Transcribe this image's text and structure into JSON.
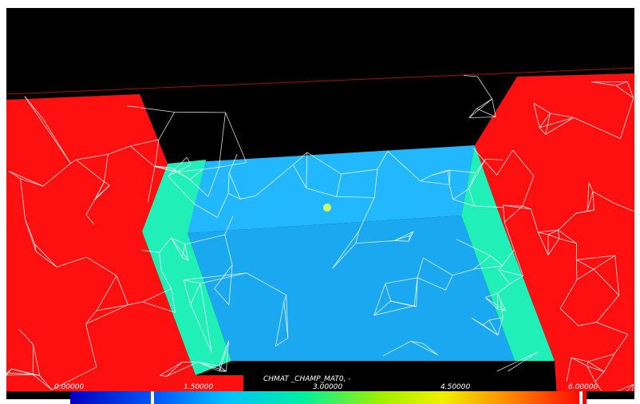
{
  "legend": {
    "title": "CHMAT _CHAMP_MAT0, -",
    "ticks": [
      "0.00000",
      "1.50000",
      "3.00000",
      "4.50000",
      "6.00000"
    ]
  }
}
